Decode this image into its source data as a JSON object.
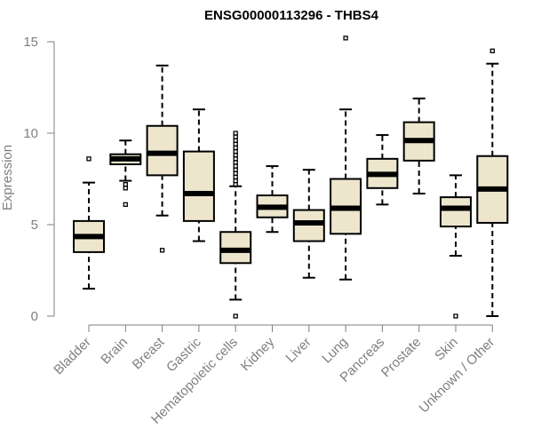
{
  "chart_data": {
    "type": "boxplot",
    "title": "ENSG00000113296 - THBS4",
    "xlabel": "",
    "ylabel": "Expression",
    "ylim": [
      0,
      15
    ],
    "yticks": [
      0,
      5,
      10,
      15
    ],
    "grid": false,
    "legend": "none",
    "box_fill": "#ede6cc",
    "categories": [
      "Bladder",
      "Brain",
      "Breast",
      "Gastric",
      "Hematopoietic cells",
      "Kidney",
      "Liver",
      "Lung",
      "Pancreas",
      "Prostate",
      "Skin",
      "Unknown / Other"
    ],
    "boxes": [
      {
        "whisker_low": 1.5,
        "q1": 3.5,
        "median": 4.35,
        "q3": 5.2,
        "whisker_high": 7.3,
        "outliers": [
          8.6
        ]
      },
      {
        "whisker_low": 7.4,
        "q1": 8.3,
        "median": 8.6,
        "q3": 8.85,
        "whisker_high": 9.6,
        "outliers": [
          7.2,
          7.0,
          6.1
        ]
      },
      {
        "whisker_low": 5.5,
        "q1": 7.7,
        "median": 8.9,
        "q3": 10.4,
        "whisker_high": 13.7,
        "outliers": [
          3.6
        ]
      },
      {
        "whisker_low": 4.1,
        "q1": 5.2,
        "median": 6.7,
        "q3": 9.0,
        "whisker_high": 11.3,
        "outliers": []
      },
      {
        "whisker_low": 0.9,
        "q1": 2.9,
        "median": 3.6,
        "q3": 4.6,
        "whisker_high": 7.1,
        "outliers": [
          0.0,
          7.2,
          7.4,
          7.6,
          7.8,
          8.0,
          8.2,
          8.4,
          8.6,
          8.8,
          9.0,
          9.2,
          9.4,
          9.6,
          9.8,
          10.0
        ]
      },
      {
        "whisker_low": 4.6,
        "q1": 5.4,
        "median": 5.95,
        "q3": 6.6,
        "whisker_high": 8.2,
        "outliers": []
      },
      {
        "whisker_low": 2.1,
        "q1": 4.1,
        "median": 5.1,
        "q3": 5.8,
        "whisker_high": 8.0,
        "outliers": []
      },
      {
        "whisker_low": 2.0,
        "q1": 4.5,
        "median": 5.9,
        "q3": 7.5,
        "whisker_high": 11.3,
        "outliers": [
          15.2
        ]
      },
      {
        "whisker_low": 6.1,
        "q1": 7.0,
        "median": 7.75,
        "q3": 8.6,
        "whisker_high": 9.9,
        "outliers": []
      },
      {
        "whisker_low": 6.7,
        "q1": 8.5,
        "median": 9.6,
        "q3": 10.6,
        "whisker_high": 11.9,
        "outliers": []
      },
      {
        "whisker_low": 3.3,
        "q1": 4.9,
        "median": 5.9,
        "q3": 6.5,
        "whisker_high": 7.7,
        "outliers": [
          0.0
        ]
      },
      {
        "whisker_low": 0.0,
        "q1": 5.1,
        "median": 6.95,
        "q3": 8.75,
        "whisker_high": 13.8,
        "outliers": [
          14.5
        ]
      }
    ]
  }
}
